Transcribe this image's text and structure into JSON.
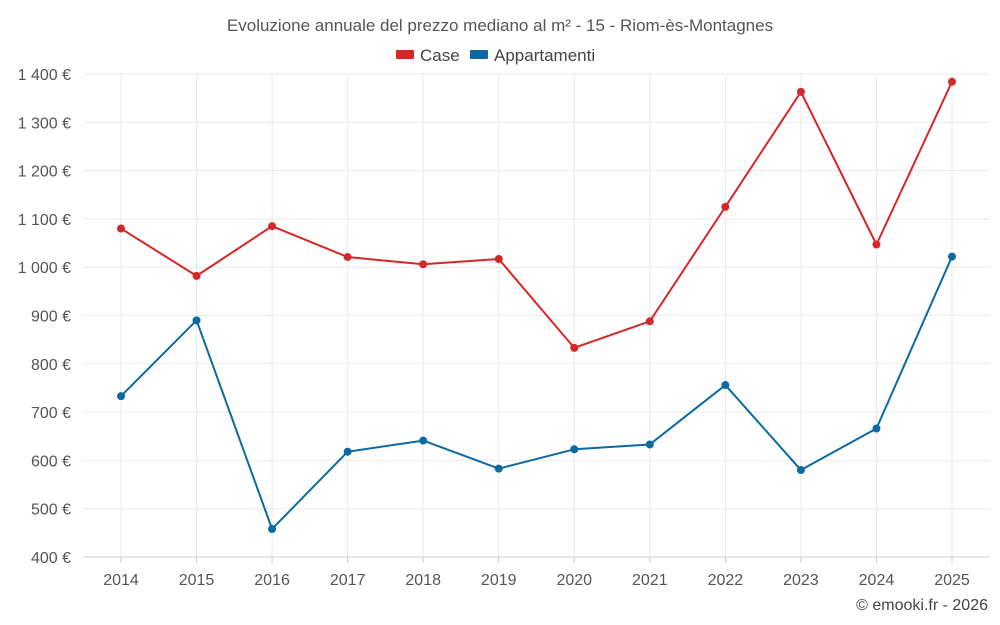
{
  "chart_data": {
    "type": "line",
    "title": "Evoluzione annuale del prezzo mediano al m² - 15 - Riom-ès-Montagnes",
    "categories": [
      "2014",
      "2015",
      "2016",
      "2017",
      "2018",
      "2019",
      "2020",
      "2021",
      "2022",
      "2023",
      "2024",
      "2025"
    ],
    "series": [
      {
        "name": "Case",
        "color": "#d62728",
        "values": [
          1080,
          982,
          1085,
          1021,
          1006,
          1017,
          833,
          888,
          1125,
          1363,
          1047,
          1384
        ]
      },
      {
        "name": "Appartamenti",
        "color": "#0a6aa1",
        "values": [
          733,
          890,
          458,
          618,
          641,
          583,
          623,
          633,
          756,
          580,
          666,
          1022
        ]
      }
    ],
    "ylim": [
      400,
      1400
    ],
    "yticks": [
      400,
      500,
      600,
      700,
      800,
      900,
      1000,
      1100,
      1200,
      1300,
      1400
    ],
    "ytick_labels": [
      "400 €",
      "500 €",
      "600 €",
      "700 €",
      "800 €",
      "900 €",
      "1 000 €",
      "1 100 €",
      "1 200 €",
      "1 300 €",
      "1 400 €"
    ],
    "grid": true,
    "legend_position": "top-center"
  },
  "credit": "© emooki.fr - 2026"
}
